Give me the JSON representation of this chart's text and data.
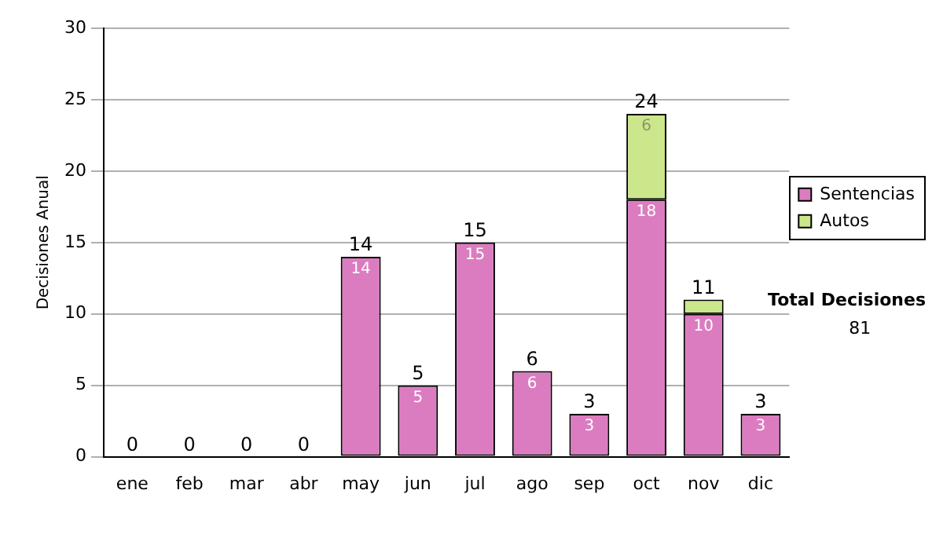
{
  "chart_data": {
    "type": "bar",
    "stacked": true,
    "ylabel": "Decisiones Anual",
    "categories": [
      "ene",
      "feb",
      "mar",
      "abr",
      "may",
      "jun",
      "jul",
      "ago",
      "sep",
      "oct",
      "nov",
      "dic"
    ],
    "series": [
      {
        "name": "Sentencias",
        "color": "#dc7cc0",
        "values": [
          0,
          0,
          0,
          0,
          14,
          5,
          15,
          6,
          3,
          18,
          10,
          3
        ],
        "value_labels": [
          null,
          null,
          null,
          null,
          "14",
          "5",
          "15",
          "6",
          "3",
          "18",
          "10",
          "3"
        ]
      },
      {
        "name": "Autos",
        "color": "#cce68c",
        "values": [
          0,
          0,
          0,
          0,
          0,
          0,
          0,
          0,
          0,
          6,
          1,
          0
        ],
        "value_labels": [
          null,
          null,
          null,
          null,
          null,
          null,
          null,
          null,
          null,
          "6",
          null,
          null
        ]
      }
    ],
    "totals": [
      "0",
      "0",
      "0",
      "0",
      "14",
      "5",
      "15",
      "6",
      "3",
      "24",
      "11",
      "3"
    ],
    "ylim": [
      0,
      30
    ],
    "yticks": [
      0,
      5,
      10,
      15,
      20,
      25,
      30
    ],
    "grid": "y",
    "legend": "right",
    "annotations": [
      "Total Decisiones",
      "81"
    ]
  }
}
